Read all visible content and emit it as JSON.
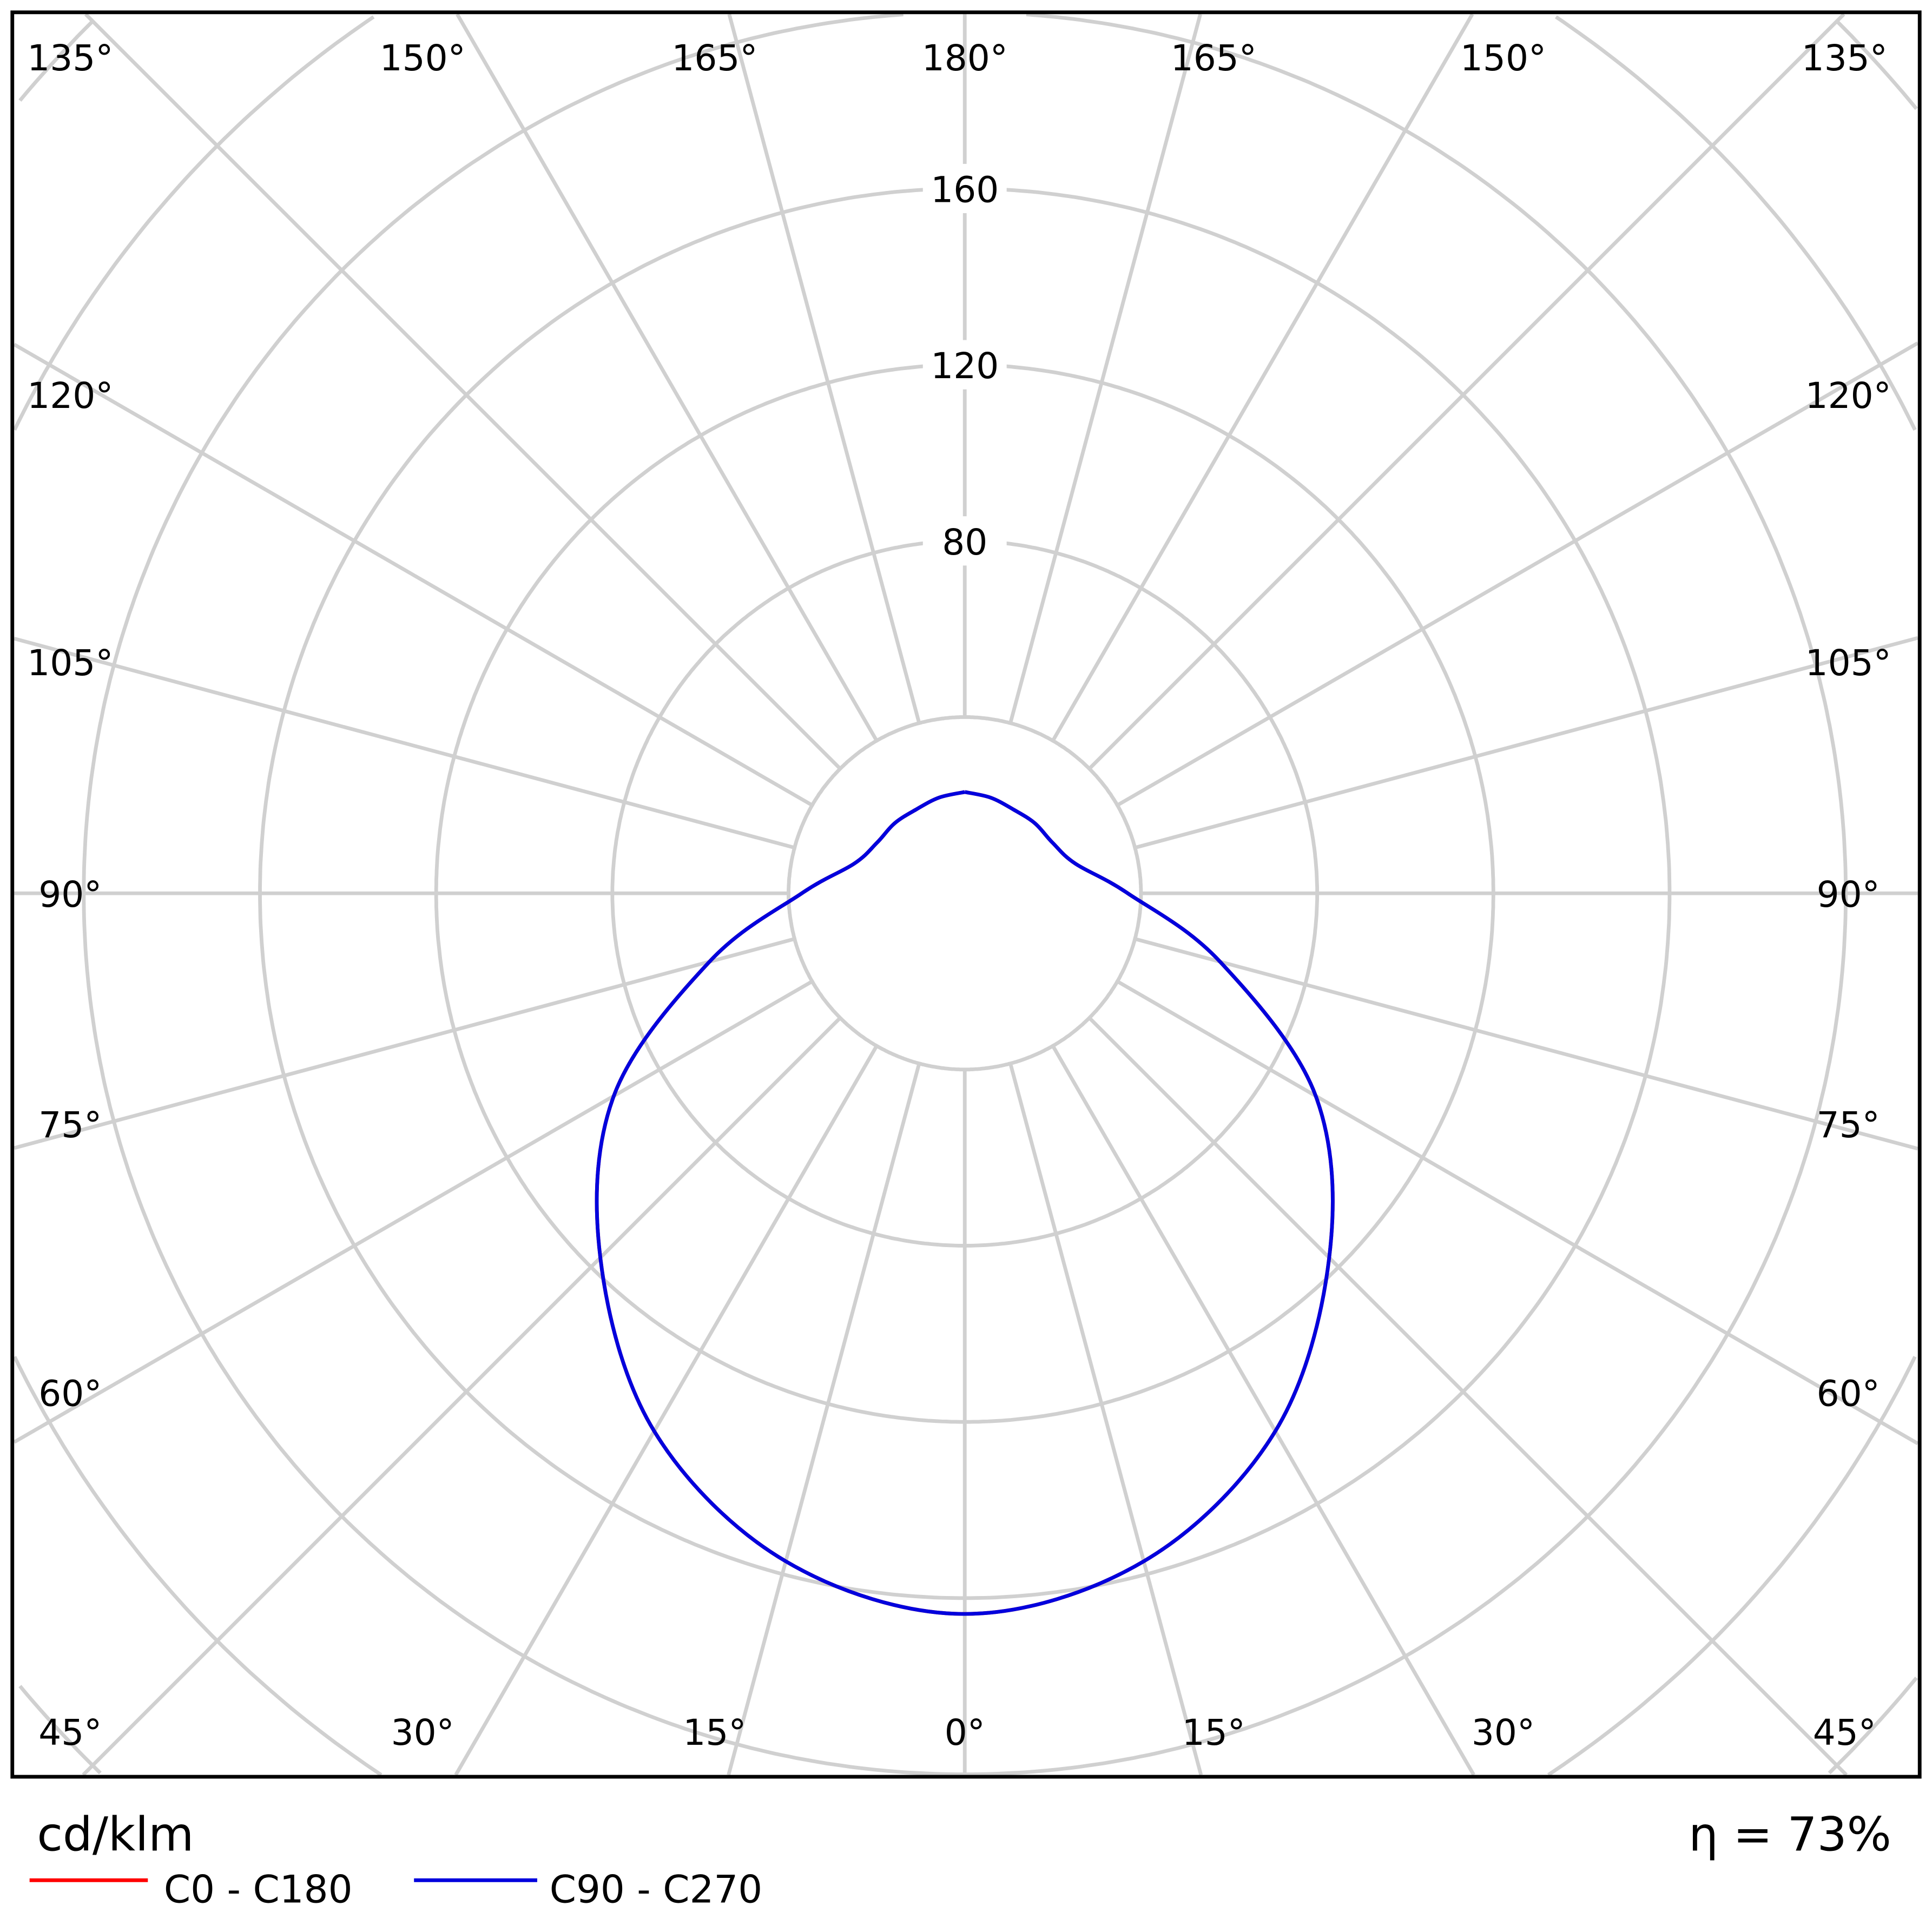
{
  "chart_data": {
    "type": "polar-line",
    "unit_label": "cd/klm",
    "efficiency_label": "η = 73%",
    "radial_tick_labels": [
      "80",
      "120",
      "160"
    ],
    "radial_ticks": [
      40,
      80,
      120,
      160,
      200,
      240,
      280
    ],
    "angle_step_deg": 15,
    "grid": true,
    "legend_placement": "bottom-left",
    "angle_labels": {
      "top": [
        "135°",
        "150°",
        "165°",
        "180°",
        "165°",
        "150°",
        "135°"
      ],
      "left": [
        "120°",
        "105°",
        "90°",
        "75°",
        "60°"
      ],
      "right": [
        "120°",
        "105°",
        "90°",
        "75°",
        "60°"
      ],
      "bottom": [
        "45°",
        "30°",
        "15°",
        "0°",
        "15°",
        "30°",
        "45°"
      ]
    },
    "gamma_deg": [
      0,
      15,
      30,
      45,
      60,
      75,
      90,
      105,
      120,
      135,
      150,
      165,
      180
    ],
    "series": [
      {
        "name": "C0 - C180",
        "color": "#ff0000",
        "values": [
          163.6,
          157,
          141,
          117,
          92,
          60,
          37,
          26,
          23,
          22.5,
          22,
          22.5,
          23
        ]
      },
      {
        "name": "C90 - C270",
        "color": "#0000dd",
        "values": [
          163.6,
          157,
          141,
          117,
          92,
          60,
          37,
          26,
          23,
          22.5,
          22,
          22.5,
          23
        ]
      }
    ]
  }
}
